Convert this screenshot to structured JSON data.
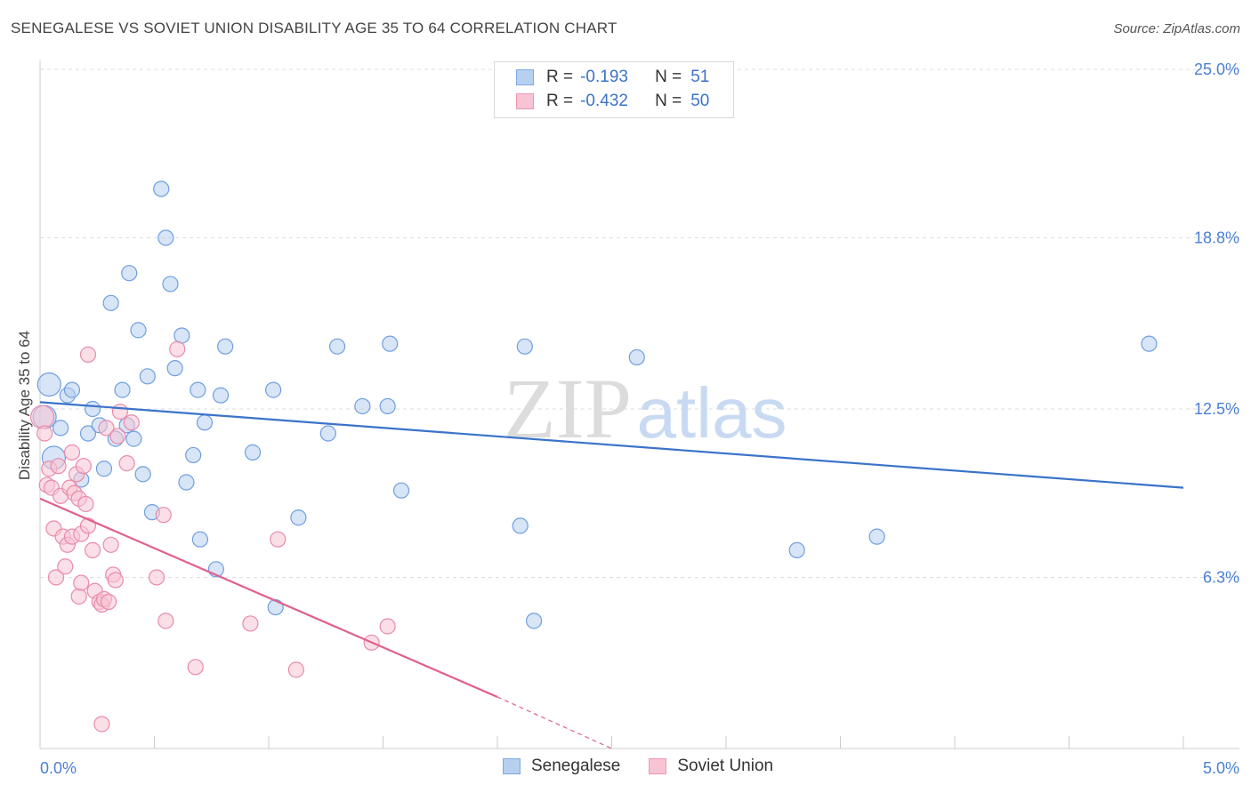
{
  "header": {
    "title": "SENEGALESE VS SOVIET UNION DISABILITY AGE 35 TO 64 CORRELATION CHART",
    "source": "Source: ZipAtlas.com"
  },
  "watermark": {
    "zip": "ZIP",
    "atlas": "atlas"
  },
  "legend": {
    "r_label": "R =",
    "n_label": "N =",
    "rows": [
      {
        "name": "Senegalese",
        "r": "-0.193",
        "n": "51",
        "fill": "#b8d0f0",
        "stroke": "#7ea8e0"
      },
      {
        "name": "Soviet Union",
        "r": "-0.432",
        "n": "50",
        "fill": "#f8c4d4",
        "stroke": "#ec96b2"
      }
    ]
  },
  "chart_data": {
    "type": "scatter",
    "title": "SENEGALESE VS SOVIET UNION DISABILITY AGE 35 TO 64 CORRELATION CHART",
    "xlabel": "",
    "ylabel": "Disability Age 35 to 64",
    "xlim": [
      0,
      5.0
    ],
    "ylim": [
      0,
      25.0
    ],
    "x_tick_labels": [
      "0.0%",
      "5.0%"
    ],
    "y_ticks": [
      {
        "value": 6.3,
        "label": "6.3%"
      },
      {
        "value": 12.5,
        "label": "12.5%"
      },
      {
        "value": 18.8,
        "label": "18.8%"
      },
      {
        "value": 25.0,
        "label": "25.0%"
      }
    ],
    "grid": true,
    "series": [
      {
        "name": "Senegalese",
        "color": "#3a73c9",
        "fill": "#b8d0f0",
        "trend": {
          "x": [
            0.0,
            5.0
          ],
          "y": [
            12.75,
            9.6
          ]
        },
        "points": [
          {
            "x": 0.02,
            "y": 12.2,
            "big": true
          },
          {
            "x": 0.04,
            "y": 13.4,
            "big": true
          },
          {
            "x": 0.06,
            "y": 10.7,
            "big": true
          },
          {
            "x": 0.09,
            "y": 11.8
          },
          {
            "x": 0.12,
            "y": 13.0
          },
          {
            "x": 0.14,
            "y": 13.2
          },
          {
            "x": 0.18,
            "y": 9.9
          },
          {
            "x": 0.21,
            "y": 11.6
          },
          {
            "x": 0.23,
            "y": 12.5
          },
          {
            "x": 0.26,
            "y": 11.9
          },
          {
            "x": 0.28,
            "y": 10.3
          },
          {
            "x": 0.31,
            "y": 16.4
          },
          {
            "x": 0.33,
            "y": 11.4
          },
          {
            "x": 0.36,
            "y": 13.2
          },
          {
            "x": 0.38,
            "y": 11.9
          },
          {
            "x": 0.39,
            "y": 17.5
          },
          {
            "x": 0.41,
            "y": 11.4
          },
          {
            "x": 0.43,
            "y": 15.4
          },
          {
            "x": 0.45,
            "y": 10.1
          },
          {
            "x": 0.47,
            "y": 13.7
          },
          {
            "x": 0.49,
            "y": 8.7
          },
          {
            "x": 0.53,
            "y": 20.6
          },
          {
            "x": 0.55,
            "y": 18.8
          },
          {
            "x": 0.57,
            "y": 17.1
          },
          {
            "x": 0.59,
            "y": 14.0
          },
          {
            "x": 0.62,
            "y": 15.2
          },
          {
            "x": 0.64,
            "y": 9.8
          },
          {
            "x": 0.67,
            "y": 10.8
          },
          {
            "x": 0.69,
            "y": 13.2
          },
          {
            "x": 0.7,
            "y": 7.7
          },
          {
            "x": 0.72,
            "y": 12.0
          },
          {
            "x": 0.77,
            "y": 6.6
          },
          {
            "x": 0.79,
            "y": 13.0
          },
          {
            "x": 0.81,
            "y": 14.8
          },
          {
            "x": 0.93,
            "y": 10.9
          },
          {
            "x": 1.02,
            "y": 13.2
          },
          {
            "x": 1.03,
            "y": 5.2
          },
          {
            "x": 1.13,
            "y": 8.5
          },
          {
            "x": 1.26,
            "y": 11.6
          },
          {
            "x": 1.3,
            "y": 14.8
          },
          {
            "x": 1.41,
            "y": 12.6
          },
          {
            "x": 1.52,
            "y": 12.6
          },
          {
            "x": 1.53,
            "y": 14.9
          },
          {
            "x": 1.58,
            "y": 9.5
          },
          {
            "x": 2.1,
            "y": 8.2
          },
          {
            "x": 2.12,
            "y": 14.8
          },
          {
            "x": 2.16,
            "y": 4.7
          },
          {
            "x": 2.61,
            "y": 14.4
          },
          {
            "x": 3.31,
            "y": 7.3
          },
          {
            "x": 3.66,
            "y": 7.8
          },
          {
            "x": 4.85,
            "y": 14.9
          }
        ]
      },
      {
        "name": "Soviet Union",
        "color": "#e0608e",
        "fill": "#f8c4d4",
        "trend": {
          "x": [
            0.0,
            2.0
          ],
          "y": [
            9.2,
            1.9
          ],
          "dash_to": [
            2.5,
            0.0
          ]
        },
        "points": [
          {
            "x": 0.01,
            "y": 12.2,
            "big": true
          },
          {
            "x": 0.02,
            "y": 11.6
          },
          {
            "x": 0.03,
            "y": 9.7
          },
          {
            "x": 0.04,
            "y": 10.3
          },
          {
            "x": 0.05,
            "y": 9.6
          },
          {
            "x": 0.06,
            "y": 8.1
          },
          {
            "x": 0.07,
            "y": 6.3
          },
          {
            "x": 0.08,
            "y": 10.4
          },
          {
            "x": 0.09,
            "y": 9.3
          },
          {
            "x": 0.1,
            "y": 7.8
          },
          {
            "x": 0.11,
            "y": 6.7
          },
          {
            "x": 0.12,
            "y": 7.5
          },
          {
            "x": 0.13,
            "y": 9.6
          },
          {
            "x": 0.14,
            "y": 7.8
          },
          {
            "x": 0.14,
            "y": 10.9
          },
          {
            "x": 0.15,
            "y": 9.4
          },
          {
            "x": 0.16,
            "y": 10.1
          },
          {
            "x": 0.17,
            "y": 9.2
          },
          {
            "x": 0.17,
            "y": 5.6
          },
          {
            "x": 0.18,
            "y": 7.9
          },
          {
            "x": 0.18,
            "y": 6.1
          },
          {
            "x": 0.19,
            "y": 10.4
          },
          {
            "x": 0.2,
            "y": 9.0
          },
          {
            "x": 0.21,
            "y": 14.5
          },
          {
            "x": 0.21,
            "y": 8.2
          },
          {
            "x": 0.23,
            "y": 7.3
          },
          {
            "x": 0.24,
            "y": 5.8
          },
          {
            "x": 0.26,
            "y": 5.4
          },
          {
            "x": 0.27,
            "y": 5.3
          },
          {
            "x": 0.27,
            "y": 0.9
          },
          {
            "x": 0.28,
            "y": 5.5
          },
          {
            "x": 0.29,
            "y": 11.8
          },
          {
            "x": 0.3,
            "y": 5.4
          },
          {
            "x": 0.31,
            "y": 7.5
          },
          {
            "x": 0.32,
            "y": 6.4
          },
          {
            "x": 0.33,
            "y": 6.2
          },
          {
            "x": 0.34,
            "y": 11.5
          },
          {
            "x": 0.35,
            "y": 12.4
          },
          {
            "x": 0.38,
            "y": 10.5
          },
          {
            "x": 0.4,
            "y": 12.0
          },
          {
            "x": 0.51,
            "y": 6.3
          },
          {
            "x": 0.54,
            "y": 8.6
          },
          {
            "x": 0.55,
            "y": 4.7
          },
          {
            "x": 0.6,
            "y": 14.7
          },
          {
            "x": 0.68,
            "y": 3.0
          },
          {
            "x": 0.92,
            "y": 4.6
          },
          {
            "x": 1.04,
            "y": 7.7
          },
          {
            "x": 1.12,
            "y": 2.9
          },
          {
            "x": 1.45,
            "y": 3.9
          },
          {
            "x": 1.52,
            "y": 4.5
          }
        ]
      }
    ]
  }
}
